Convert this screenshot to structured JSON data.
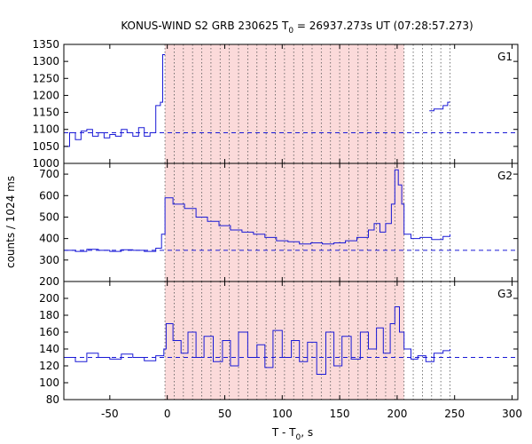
{
  "chart_data": {
    "type": "line",
    "title": {
      "prefix": "KONUS-WIND S2 GRB 230625 T",
      "sub": "0",
      "suffix": " = 26937.273s UT (07:28:57.273)"
    },
    "xlabel": {
      "prefix": "T - T",
      "sub": "0",
      "suffix": ", s"
    },
    "ylabel": "counts / 1024 ms",
    "xlim": [
      -90,
      305
    ],
    "xticks": [
      -50,
      0,
      50,
      100,
      150,
      200,
      250,
      300
    ],
    "shaded_interval": [
      -2,
      206
    ],
    "interval_boundaries": [
      -2,
      6,
      14,
      22,
      30,
      38,
      46,
      54,
      62,
      70,
      78,
      86,
      94,
      102,
      110,
      118,
      126,
      134,
      142,
      150,
      158,
      166,
      174,
      182,
      190,
      198,
      206,
      214,
      222,
      230,
      238,
      246
    ],
    "colors": {
      "series": "#1a1ad6",
      "shade": "#fbdada",
      "boundary": "#555555",
      "axis": "#000000"
    },
    "panels": [
      {
        "name": "G1",
        "ylim": [
          1000,
          1350
        ],
        "yticks": [
          1000,
          1050,
          1100,
          1150,
          1200,
          1250,
          1300,
          1350
        ],
        "background": 1090,
        "segments": [
          [
            [
              -90,
              1050
            ],
            [
              -85,
              1090
            ],
            [
              -80,
              1070
            ],
            [
              -75,
              1095
            ],
            [
              -70,
              1100
            ],
            [
              -65,
              1080
            ],
            [
              -60,
              1090
            ],
            [
              -55,
              1075
            ],
            [
              -50,
              1085
            ],
            [
              -45,
              1080
            ],
            [
              -40,
              1100
            ],
            [
              -35,
              1090
            ],
            [
              -30,
              1080
            ],
            [
              -25,
              1105
            ],
            [
              -20,
              1080
            ],
            [
              -15,
              1090
            ],
            [
              -10,
              1170
            ],
            [
              -6,
              1180
            ],
            [
              -4,
              1320
            ],
            [
              -2,
              1320
            ]
          ],
          [
            [
              228,
              1155
            ],
            [
              232,
              1160
            ],
            [
              236,
              1160
            ],
            [
              240,
              1170
            ],
            [
              244,
              1180
            ],
            [
              246,
              1180
            ]
          ]
        ]
      },
      {
        "name": "G2",
        "ylim": [
          200,
          750
        ],
        "yticks": [
          200,
          300,
          400,
          500,
          600,
          700
        ],
        "background": 345,
        "segments": [
          [
            [
              -90,
              345
            ],
            [
              -80,
              340
            ],
            [
              -70,
              350
            ],
            [
              -60,
              345
            ],
            [
              -50,
              340
            ],
            [
              -40,
              348
            ],
            [
              -30,
              345
            ],
            [
              -20,
              340
            ],
            [
              -10,
              355
            ],
            [
              -5,
              420
            ],
            [
              -2,
              590
            ],
            [
              5,
              560
            ],
            [
              15,
              540
            ],
            [
              25,
              500
            ],
            [
              35,
              480
            ],
            [
              45,
              460
            ],
            [
              55,
              440
            ],
            [
              65,
              430
            ],
            [
              75,
              420
            ],
            [
              85,
              405
            ],
            [
              95,
              390
            ],
            [
              105,
              385
            ],
            [
              115,
              375
            ],
            [
              125,
              380
            ],
            [
              135,
              375
            ],
            [
              145,
              380
            ],
            [
              155,
              390
            ],
            [
              165,
              405
            ],
            [
              175,
              440
            ],
            [
              180,
              470
            ],
            [
              185,
              430
            ],
            [
              190,
              470
            ],
            [
              195,
              560
            ],
            [
              198,
              720
            ],
            [
              201,
              650
            ],
            [
              204,
              560
            ],
            [
              206,
              420
            ],
            [
              212,
              400
            ],
            [
              220,
              405
            ],
            [
              230,
              395
            ],
            [
              240,
              410
            ],
            [
              246,
              420
            ]
          ]
        ]
      },
      {
        "name": "G3",
        "ylim": [
          80,
          220
        ],
        "yticks": [
          80,
          100,
          120,
          140,
          160,
          180,
          200
        ],
        "background": 130,
        "segments": [
          [
            [
              -90,
              130
            ],
            [
              -80,
              125
            ],
            [
              -70,
              135
            ],
            [
              -60,
              130
            ],
            [
              -50,
              128
            ],
            [
              -40,
              134
            ],
            [
              -30,
              130
            ],
            [
              -20,
              126
            ],
            [
              -10,
              132
            ],
            [
              -3,
              140
            ],
            [
              -1,
              170
            ],
            [
              5,
              150
            ],
            [
              12,
              135
            ],
            [
              18,
              160
            ],
            [
              25,
              130
            ],
            [
              32,
              155
            ],
            [
              40,
              125
            ],
            [
              48,
              150
            ],
            [
              55,
              120
            ],
            [
              62,
              160
            ],
            [
              70,
              130
            ],
            [
              78,
              145
            ],
            [
              85,
              118
            ],
            [
              92,
              162
            ],
            [
              100,
              130
            ],
            [
              108,
              150
            ],
            [
              115,
              125
            ],
            [
              122,
              148
            ],
            [
              130,
              110
            ],
            [
              138,
              160
            ],
            [
              145,
              120
            ],
            [
              152,
              155
            ],
            [
              160,
              128
            ],
            [
              168,
              160
            ],
            [
              175,
              140
            ],
            [
              182,
              165
            ],
            [
              188,
              135
            ],
            [
              194,
              170
            ],
            [
              198,
              190
            ],
            [
              202,
              160
            ],
            [
              206,
              140
            ],
            [
              212,
              128
            ],
            [
              218,
              132
            ],
            [
              225,
              125
            ],
            [
              232,
              135
            ],
            [
              240,
              138
            ],
            [
              246,
              140
            ]
          ]
        ]
      }
    ]
  }
}
